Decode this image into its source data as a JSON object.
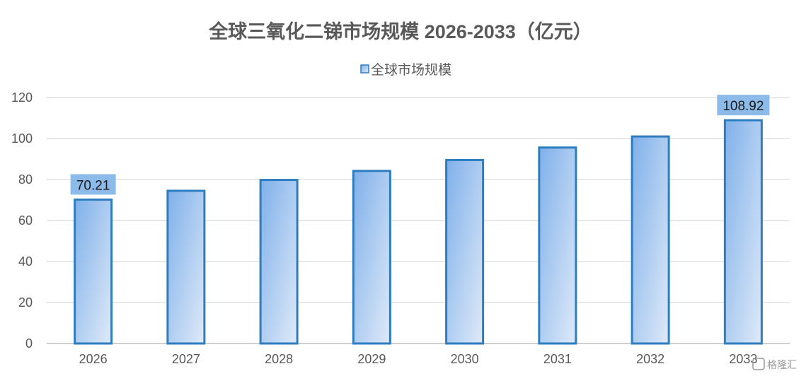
{
  "chart_data": {
    "type": "bar",
    "title": "全球三氧化二锑市场规模 2026-2033（亿元）",
    "categories": [
      "2026",
      "2027",
      "2028",
      "2029",
      "2030",
      "2031",
      "2032",
      "2033"
    ],
    "series": [
      {
        "name": "全球市场规模",
        "values": [
          70.21,
          74.5,
          79.8,
          84.2,
          89.5,
          95.6,
          101.0,
          108.92
        ]
      }
    ],
    "data_labels": [
      {
        "category": "2026",
        "text": "70.21"
      },
      {
        "category": "2033",
        "text": "108.92"
      }
    ],
    "ylim": [
      0,
      120
    ],
    "yticks": [
      0,
      20,
      40,
      60,
      80,
      100,
      120
    ],
    "xlabel": "",
    "ylabel": "",
    "grid": true,
    "legend_position": "top-center",
    "colors": {
      "bar_fill_dark": "#7fb0ea",
      "bar_fill_light": "#dfeaf8",
      "bar_border": "#2f7dc1",
      "label_background": "#8dbbe9"
    }
  },
  "watermark": {
    "text": "格隆汇",
    "icon": "glh-logo-icon"
  }
}
